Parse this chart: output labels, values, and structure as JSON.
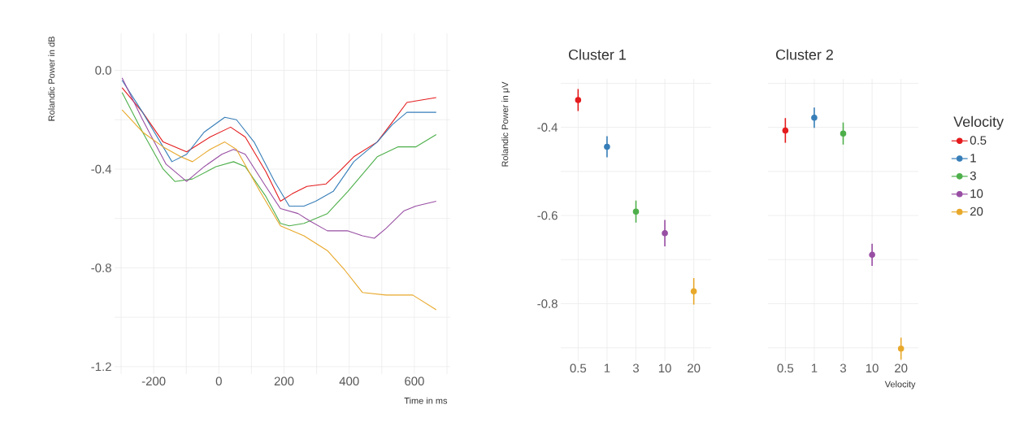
{
  "chart_data": [
    {
      "type": "line",
      "xlabel": "Time in ms",
      "ylabel": "Rolandic Power in dB",
      "xlim": [
        -320,
        710
      ],
      "ylim": [
        -1.23,
        0.15
      ],
      "xticks": [
        {
          "value": -300,
          "label": null
        },
        -200,
        {
          "value": -100,
          "label": null
        },
        0,
        {
          "value": 100,
          "label": null
        },
        200,
        {
          "value": 300,
          "label": null
        },
        400,
        {
          "value": 500,
          "label": null
        },
        600,
        {
          "value": 700,
          "label": null
        }
      ],
      "yticks": [
        {
          "value": -1.2,
          "label": "-1.2"
        },
        {
          "value": -1.0,
          "label": null
        },
        -0.8,
        {
          "value": -0.6,
          "label": null
        },
        -0.4,
        {
          "value": -0.2,
          "label": null
        },
        {
          "value": 0,
          "label": "0.0"
        }
      ],
      "grid": true,
      "series": [
        {
          "color": "#e41a1c",
          "x": [
            -297,
            -234,
            -171,
            -99,
            -27,
            36,
            81,
            144,
            189,
            225,
            270,
            329,
            369,
            414,
            486,
            532,
            577,
            667
          ],
          "values": [
            -0.07,
            -0.17,
            -0.29,
            -0.33,
            -0.27,
            -0.23,
            -0.27,
            -0.41,
            -0.53,
            -0.5,
            -0.47,
            -0.46,
            -0.41,
            -0.35,
            -0.29,
            -0.21,
            -0.13,
            -0.11
          ]
        },
        {
          "color": "#377eb8",
          "x": [
            -297,
            -234,
            -144,
            -99,
            -45,
            18,
            54,
            108,
            171,
            216,
            261,
            297,
            351,
            414,
            486,
            532,
            577,
            622,
            667
          ],
          "values": [
            -0.04,
            -0.17,
            -0.37,
            -0.34,
            -0.25,
            -0.19,
            -0.2,
            -0.29,
            -0.45,
            -0.55,
            -0.55,
            -0.53,
            -0.49,
            -0.37,
            -0.29,
            -0.22,
            -0.17,
            -0.17,
            -0.17
          ]
        },
        {
          "color": "#4daf4a",
          "x": [
            -297,
            -234,
            -171,
            -135,
            -81,
            -9,
            45,
            81,
            144,
            189,
            216,
            261,
            333,
            396,
            486,
            549,
            604,
            667
          ],
          "values": [
            -0.09,
            -0.25,
            -0.4,
            -0.45,
            -0.44,
            -0.39,
            -0.37,
            -0.39,
            -0.51,
            -0.62,
            -0.63,
            -0.62,
            -0.58,
            -0.49,
            -0.35,
            -0.31,
            -0.31,
            -0.26
          ]
        },
        {
          "color": "#984ea3",
          "x": [
            -297,
            -234,
            -162,
            -99,
            -45,
            9,
            45,
            81,
            144,
            189,
            243,
            279,
            333,
            396,
            441,
            477,
            513,
            567,
            604,
            667
          ],
          "values": [
            -0.03,
            -0.2,
            -0.38,
            -0.45,
            -0.39,
            -0.34,
            -0.32,
            -0.34,
            -0.47,
            -0.56,
            -0.58,
            -0.61,
            -0.65,
            -0.65,
            -0.67,
            -0.68,
            -0.64,
            -0.57,
            -0.55,
            -0.53
          ]
        },
        {
          "color": "#e8a82a",
          "x": [
            -297,
            -234,
            -171,
            -117,
            -81,
            -27,
            18,
            54,
            126,
            189,
            261,
            333,
            387,
            441,
            513,
            595,
            667
          ],
          "values": [
            -0.16,
            -0.25,
            -0.31,
            -0.35,
            -0.37,
            -0.32,
            -0.29,
            -0.32,
            -0.49,
            -0.63,
            -0.67,
            -0.73,
            -0.81,
            -0.9,
            -0.91,
            -0.91,
            -0.97
          ]
        }
      ]
    },
    {
      "type": "scatter",
      "title": "Cluster 1",
      "ylabel": "Rolandic Power in μV",
      "categories": [
        "0.5",
        "1",
        "3",
        "10",
        "20"
      ],
      "ylim": [
        -0.93,
        -0.29
      ],
      "yticks": [
        {
          "value": -0.9,
          "label": null
        },
        -0.8,
        {
          "value": -0.7,
          "label": null
        },
        -0.6,
        {
          "value": -0.5,
          "label": null
        },
        -0.4,
        {
          "value": -0.3,
          "label": null
        }
      ],
      "grid": true,
      "marker": "circle",
      "values": [
        -0.338,
        -0.444,
        -0.591,
        -0.64,
        -0.772
      ],
      "errors": [
        0.025,
        0.024,
        0.025,
        0.03,
        0.03
      ],
      "colors": [
        "#e41a1c",
        "#377eb8",
        "#4daf4a",
        "#984ea3",
        "#e8a82a"
      ]
    },
    {
      "type": "scatter",
      "title": "Cluster 2",
      "xlabel": "Velocity",
      "categories": [
        "0.5",
        "1",
        "3",
        "10",
        "20"
      ],
      "ylim": [
        -0.93,
        -0.29
      ],
      "yticks": [
        {
          "value": -0.9,
          "label": null
        },
        -0.8,
        {
          "value": -0.7,
          "label": null
        },
        -0.6,
        {
          "value": -0.5,
          "label": null
        },
        -0.4,
        {
          "value": -0.3,
          "label": null
        }
      ],
      "tick_labels": "x",
      "grid": true,
      "marker": "circle",
      "legend": "right",
      "legend_title": "Velocity",
      "series": [
        {
          "name": "0.5",
          "color": "#e41a1c",
          "values": [
            -0.407,
            null,
            null,
            null,
            null
          ],
          "errors": [
            0.028,
            null,
            null,
            null,
            null
          ]
        },
        {
          "name": "1",
          "color": "#377eb8",
          "values": [
            null,
            -0.378,
            null,
            null,
            null
          ],
          "errors": [
            null,
            0.023,
            null,
            null,
            null
          ]
        },
        {
          "name": "3",
          "color": "#4daf4a",
          "values": [
            null,
            null,
            -0.414,
            null,
            null
          ],
          "errors": [
            null,
            null,
            0.025,
            null,
            null
          ]
        },
        {
          "name": "10",
          "color": "#984ea3",
          "values": [
            null,
            null,
            null,
            -0.689,
            null
          ],
          "errors": [
            null,
            null,
            null,
            0.025,
            null
          ]
        },
        {
          "name": "20",
          "color": "#e8a82a",
          "values": [
            null,
            null,
            null,
            null,
            -0.902
          ],
          "errors": [
            null,
            null,
            null,
            null,
            0.025
          ]
        }
      ]
    }
  ]
}
